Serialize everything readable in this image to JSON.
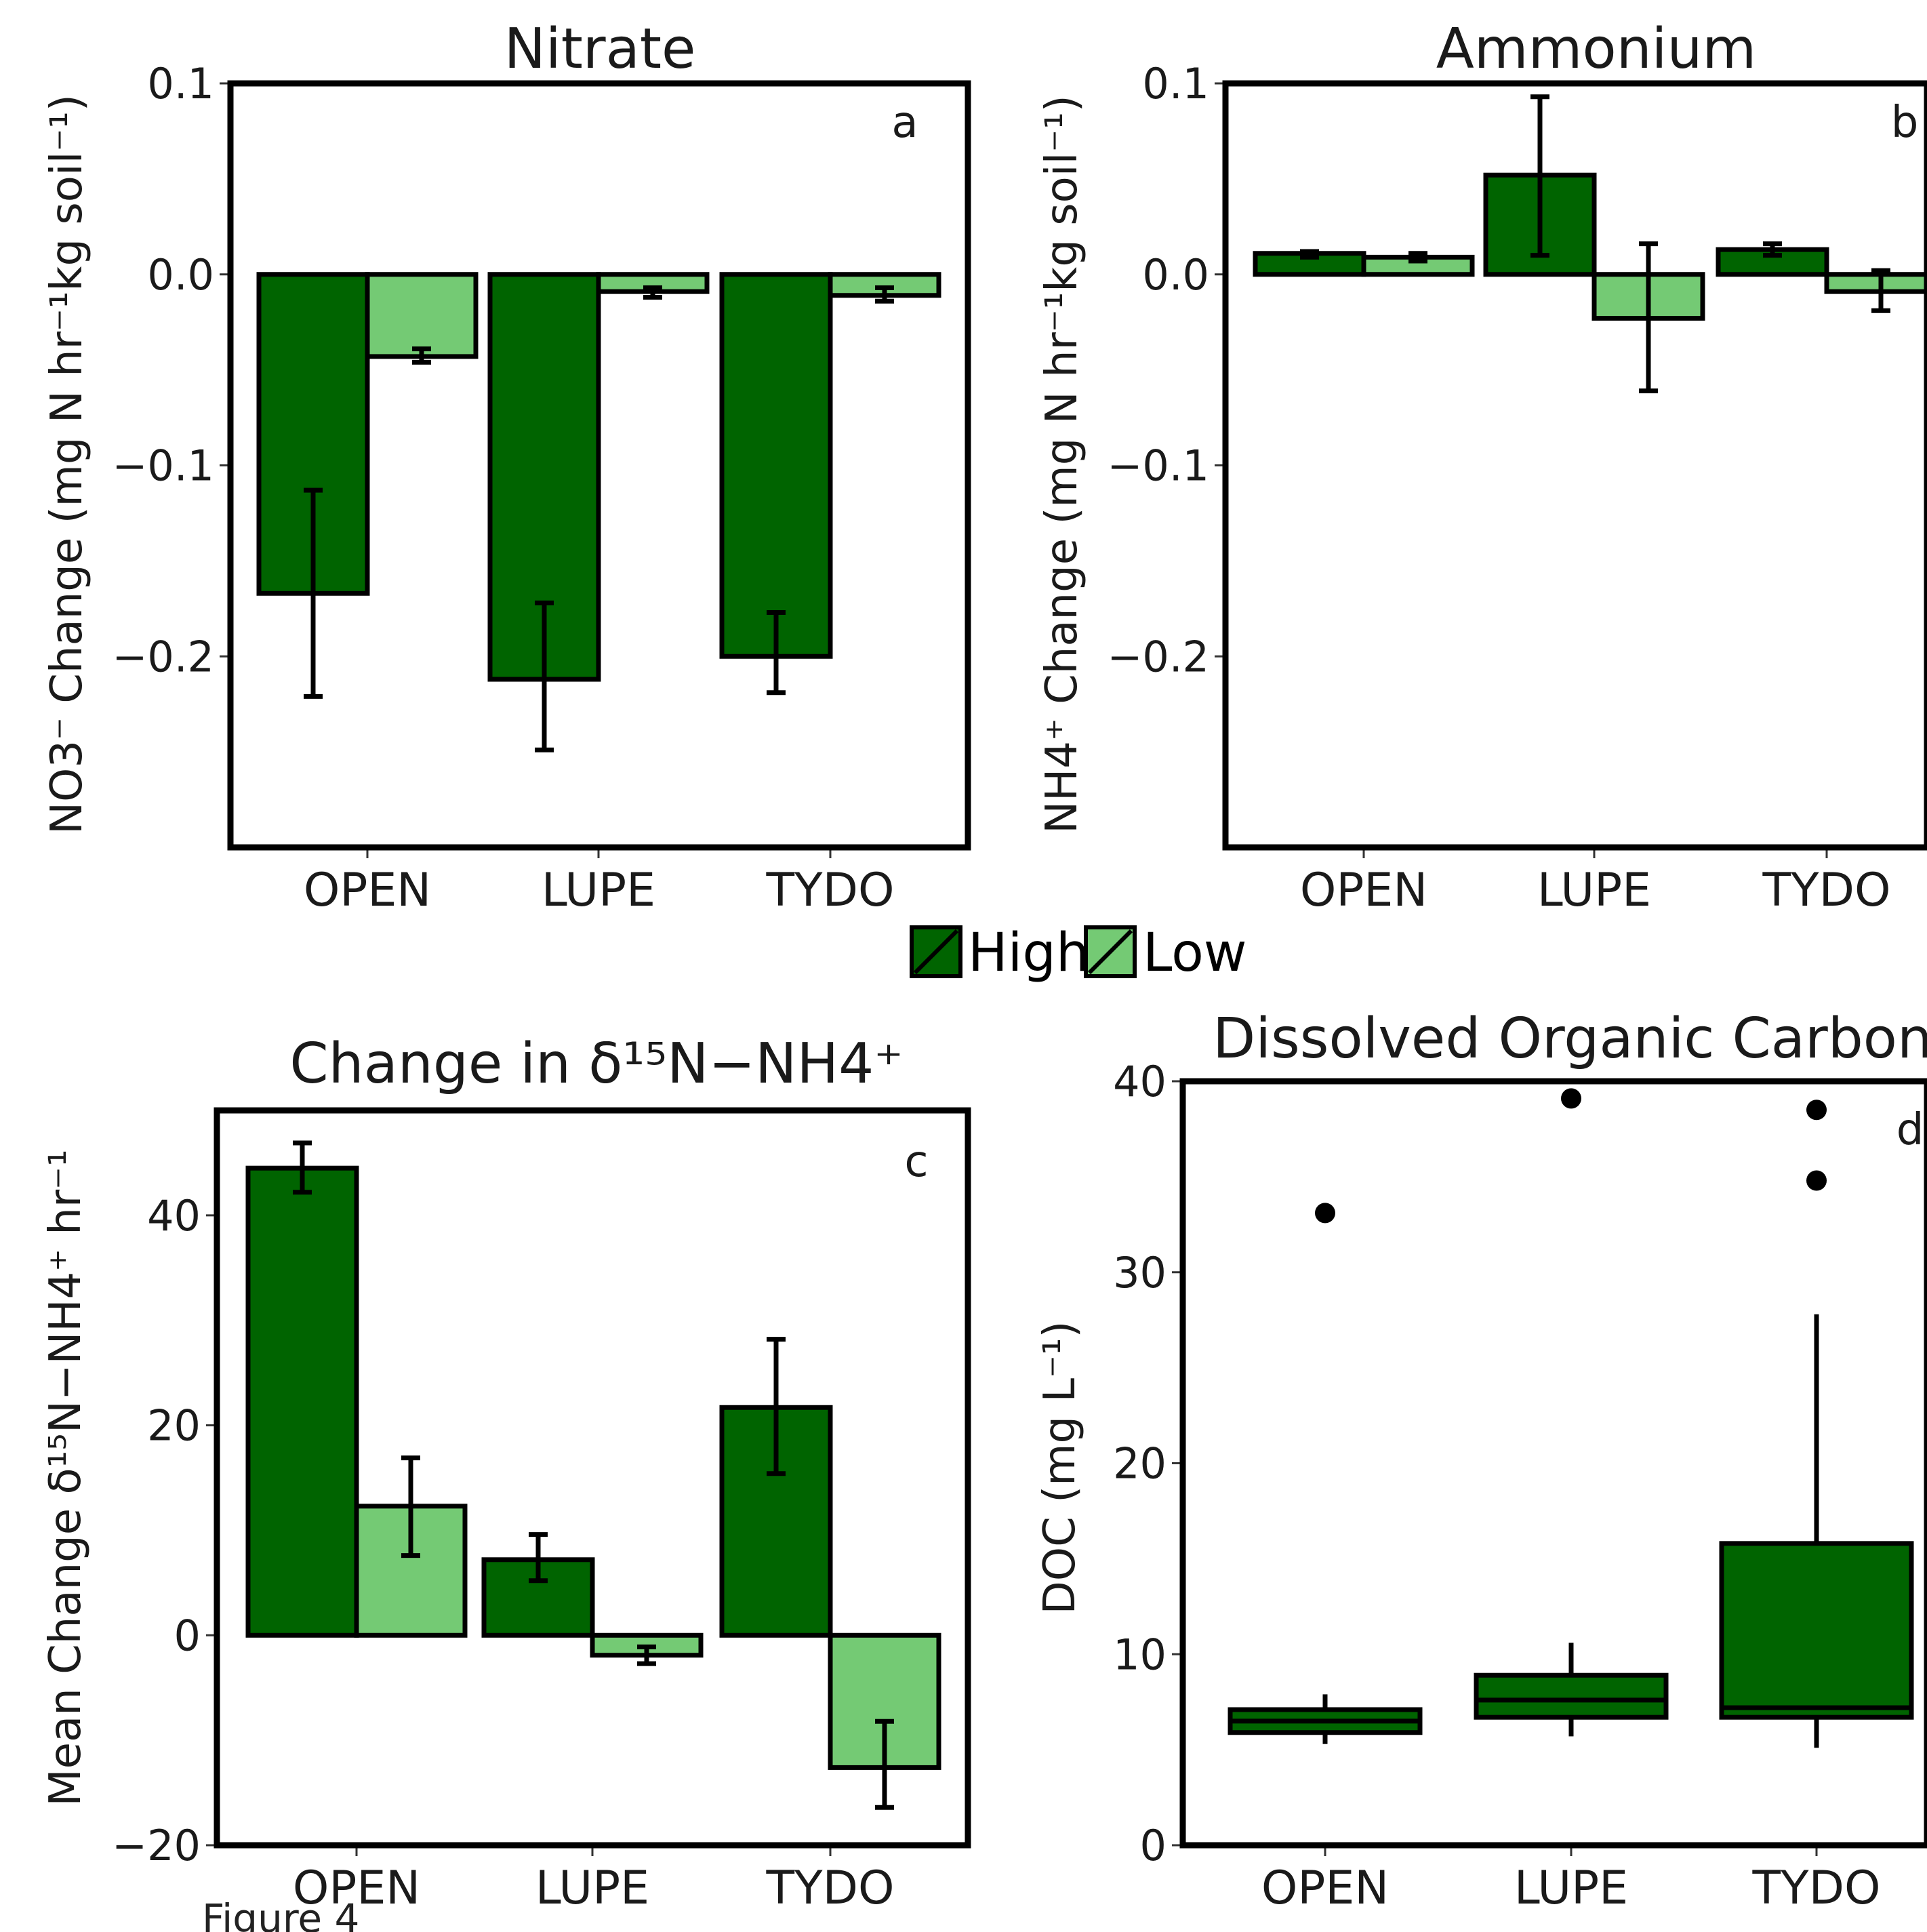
{
  "colors": {
    "high": "#006400",
    "low": "#74CA74",
    "frame": "#000000"
  },
  "legend": {
    "high_label": "High",
    "low_label": "Low"
  },
  "caption": "Figure 4",
  "chart_data": [
    {
      "type": "bar",
      "title": "Nitrate",
      "panel_label": "a",
      "ylabel": "NO3⁻ Change (mg N hr⁻¹kg soil⁻¹)",
      "ylim": [
        -0.3,
        0.1
      ],
      "yticks": [
        0.1,
        0.0,
        -0.1,
        -0.2
      ],
      "ytick_labels": [
        "0.1",
        "0.0",
        "−0.1",
        "−0.2"
      ],
      "categories": [
        "OPEN",
        "LUPE",
        "TYDO"
      ],
      "series": [
        {
          "name": "High",
          "values": [
            -0.167,
            -0.212,
            -0.2
          ],
          "err_low": [
            -0.221,
            -0.249,
            -0.219
          ],
          "err_high": [
            -0.113,
            -0.172,
            -0.177
          ]
        },
        {
          "name": "Low",
          "values": [
            -0.043,
            -0.009,
            -0.011
          ],
          "err_low": [
            -0.046,
            -0.012,
            -0.014
          ],
          "err_high": [
            -0.039,
            -0.007,
            -0.007
          ]
        }
      ]
    },
    {
      "type": "bar",
      "title": "Ammonium",
      "panel_label": "b",
      "ylabel": "NH4⁺ Change (mg N hr⁻¹kg soil⁻¹)",
      "ylim": [
        -0.3,
        0.1
      ],
      "yticks": [
        0.1,
        0.0,
        -0.1,
        -0.2
      ],
      "ytick_labels": [
        "0.1",
        "0.0",
        "−0.1",
        "−0.2"
      ],
      "categories": [
        "OPEN",
        "LUPE",
        "TYDO"
      ],
      "series": [
        {
          "name": "High",
          "values": [
            0.011,
            0.052,
            0.013
          ],
          "err_low": [
            0.009,
            0.01,
            0.01
          ],
          "err_high": [
            0.012,
            0.093,
            0.016
          ]
        },
        {
          "name": "Low",
          "values": [
            0.009,
            -0.023,
            -0.009
          ],
          "err_low": [
            0.007,
            -0.061,
            -0.019
          ],
          "err_high": [
            0.011,
            0.016,
            0.002
          ]
        }
      ]
    },
    {
      "type": "bar",
      "title": "Change in δ¹⁵N−NH4⁺",
      "panel_label": "c",
      "ylabel": "Mean Change δ¹⁵N−NH4⁺ hr⁻¹",
      "ylim": [
        -20,
        50
      ],
      "yticks": [
        40,
        20,
        0,
        -20
      ],
      "ytick_labels": [
        "40",
        "20",
        "0",
        "−20"
      ],
      "categories": [
        "OPEN",
        "LUPE",
        "TYDO"
      ],
      "series": [
        {
          "name": "High",
          "values": [
            44.5,
            7.2,
            21.7
          ],
          "err_low": [
            42.2,
            5.2,
            15.4
          ],
          "err_high": [
            46.9,
            9.6,
            28.2
          ]
        },
        {
          "name": "Low",
          "values": [
            12.3,
            -1.9,
            -12.6
          ],
          "err_low": [
            7.6,
            -2.7,
            -16.4
          ],
          "err_high": [
            16.9,
            -1.1,
            -8.2
          ]
        }
      ]
    },
    {
      "type": "box",
      "title": "Dissolved Organic Carbon",
      "panel_label": "d",
      "ylabel": "DOC (mg L⁻¹)",
      "ylim": [
        0,
        40
      ],
      "yticks": [
        40,
        30,
        20,
        10,
        0
      ],
      "ytick_labels": [
        "40",
        "30",
        "20",
        "10",
        "0"
      ],
      "categories": [
        "OPEN",
        "LUPE",
        "TYDO"
      ],
      "boxes": [
        {
          "whisker_low": 5.3,
          "q1": 5.9,
          "median": 6.5,
          "q3": 7.1,
          "whisker_high": 7.9,
          "outliers": [
            33.1
          ]
        },
        {
          "whisker_low": 5.7,
          "q1": 6.7,
          "median": 7.6,
          "q3": 8.9,
          "whisker_high": 10.6,
          "outliers": [
            39.1
          ]
        },
        {
          "whisker_low": 5.1,
          "q1": 6.7,
          "median": 7.2,
          "q3": 15.8,
          "whisker_high": 27.8,
          "outliers": [
            38.5,
            34.8
          ]
        }
      ]
    }
  ]
}
